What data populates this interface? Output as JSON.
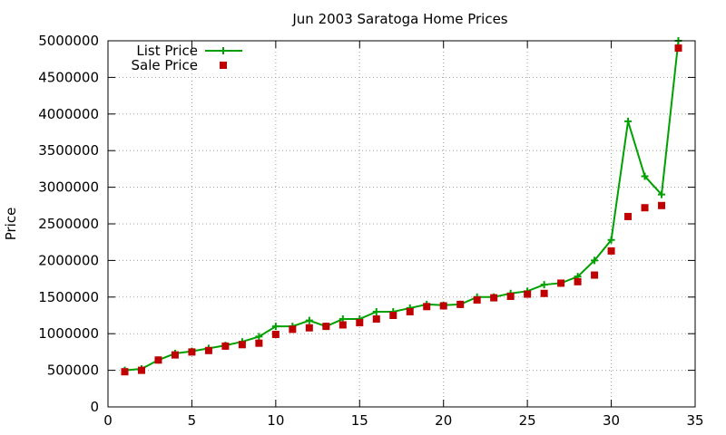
{
  "chart_data": {
    "type": "line",
    "title": "Jun 2003 Saratoga Home Prices",
    "xlabel": "",
    "ylabel": "Price",
    "xlim": [
      0,
      35
    ],
    "ylim": [
      0,
      5000000
    ],
    "xticks": [
      0,
      5,
      10,
      15,
      20,
      25,
      30,
      35
    ],
    "yticks": [
      0,
      500000,
      1000000,
      1500000,
      2000000,
      2500000,
      3000000,
      3500000,
      4000000,
      4500000,
      5000000
    ],
    "grid": true,
    "legend_position": "top-left",
    "series": [
      {
        "name": "List Price",
        "style": "linespoints",
        "marker": "plus",
        "color": "#00a000",
        "x": [
          1,
          2,
          3,
          4,
          5,
          6,
          7,
          8,
          9,
          10,
          11,
          12,
          13,
          14,
          15,
          16,
          17,
          18,
          19,
          20,
          21,
          22,
          23,
          24,
          25,
          26,
          27,
          28,
          29,
          30,
          31,
          32,
          33,
          34
        ],
        "y": [
          500000,
          520000,
          640000,
          730000,
          760000,
          800000,
          840000,
          890000,
          960000,
          1100000,
          1100000,
          1180000,
          1100000,
          1200000,
          1200000,
          1300000,
          1300000,
          1350000,
          1400000,
          1390000,
          1400000,
          1500000,
          1500000,
          1550000,
          1580000,
          1670000,
          1690000,
          1780000,
          2000000,
          2280000,
          3900000,
          3150000,
          2900000,
          5000000
        ]
      },
      {
        "name": "Sale Price",
        "style": "points",
        "marker": "square",
        "color": "#c00000",
        "x": [
          1,
          2,
          3,
          4,
          5,
          6,
          7,
          8,
          9,
          10,
          11,
          12,
          13,
          14,
          15,
          16,
          17,
          18,
          19,
          20,
          21,
          22,
          23,
          24,
          25,
          26,
          27,
          28,
          29,
          30,
          31,
          32,
          33,
          34
        ],
        "y": [
          480000,
          500000,
          640000,
          710000,
          750000,
          770000,
          830000,
          850000,
          870000,
          990000,
          1060000,
          1080000,
          1100000,
          1120000,
          1150000,
          1200000,
          1250000,
          1300000,
          1370000,
          1380000,
          1400000,
          1460000,
          1490000,
          1510000,
          1540000,
          1550000,
          1690000,
          1710000,
          1800000,
          2130000,
          2600000,
          2720000,
          2750000,
          4900000
        ]
      }
    ]
  }
}
